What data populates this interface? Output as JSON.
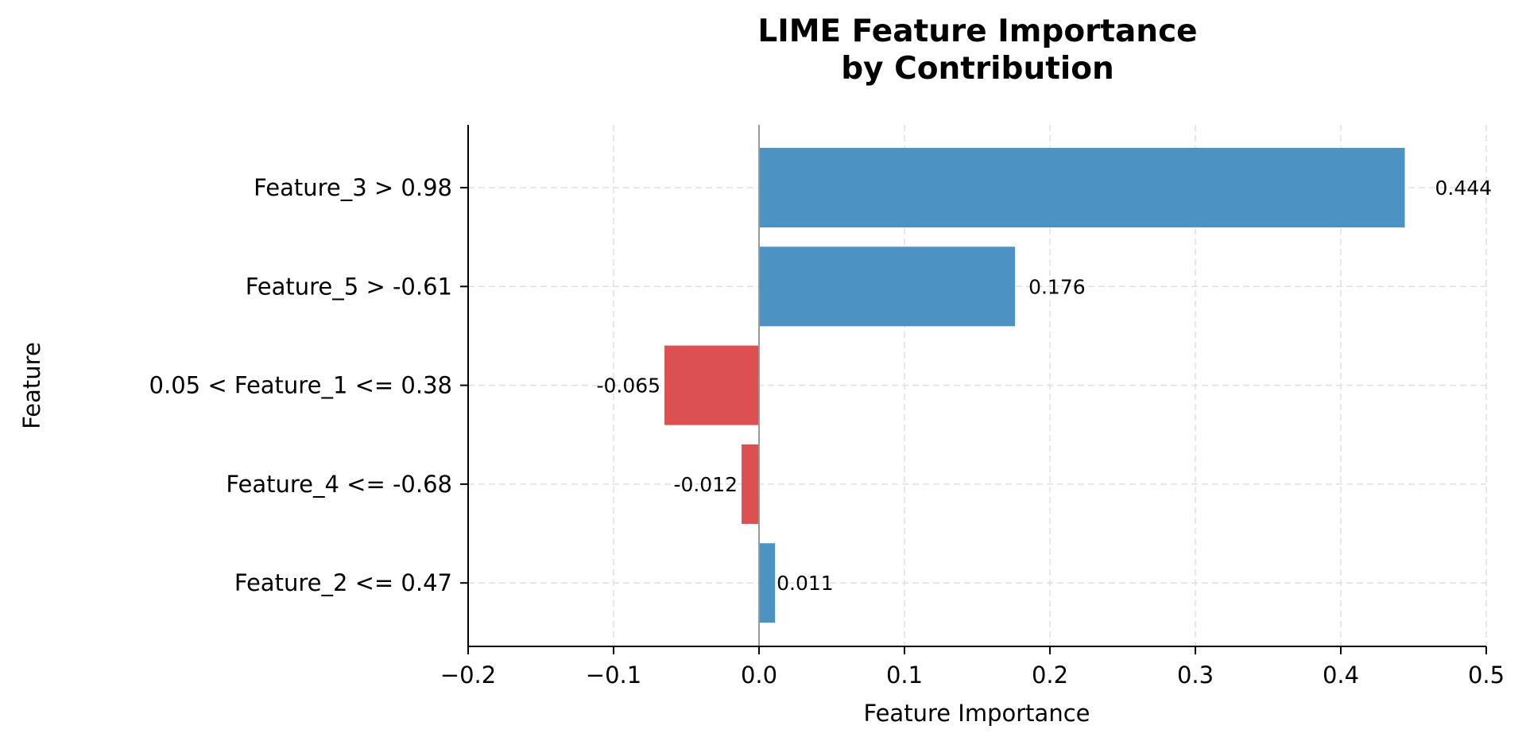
{
  "chart_data": {
    "type": "bar",
    "orientation": "horizontal",
    "title": "LIME Feature Importance\nby Contribution",
    "title_lines": [
      "LIME Feature Importance",
      "by Contribution"
    ],
    "xlabel": "Feature Importance",
    "ylabel": "Feature",
    "xlim": [
      -0.2,
      0.5
    ],
    "xticks": [
      -0.2,
      -0.1,
      0.0,
      0.1,
      0.2,
      0.3,
      0.4,
      0.5
    ],
    "xtick_labels": [
      "−0.2",
      "−0.1",
      "0.0",
      "0.1",
      "0.2",
      "0.3",
      "0.4",
      "0.5"
    ],
    "grid": true,
    "categories": [
      "Feature_3 > 0.98",
      "Feature_5 > -0.61",
      "0.05 < Feature_1 <= 0.38",
      "Feature_4 <= -0.68",
      "Feature_2 <= 0.47"
    ],
    "values": [
      0.444,
      0.176,
      -0.065,
      -0.012,
      0.011
    ],
    "value_labels": [
      "0.444",
      "0.176",
      "-0.065",
      "-0.012",
      "0.011"
    ],
    "colors": {
      "positive": "#4c92c3",
      "negative": "#dd5052"
    }
  }
}
